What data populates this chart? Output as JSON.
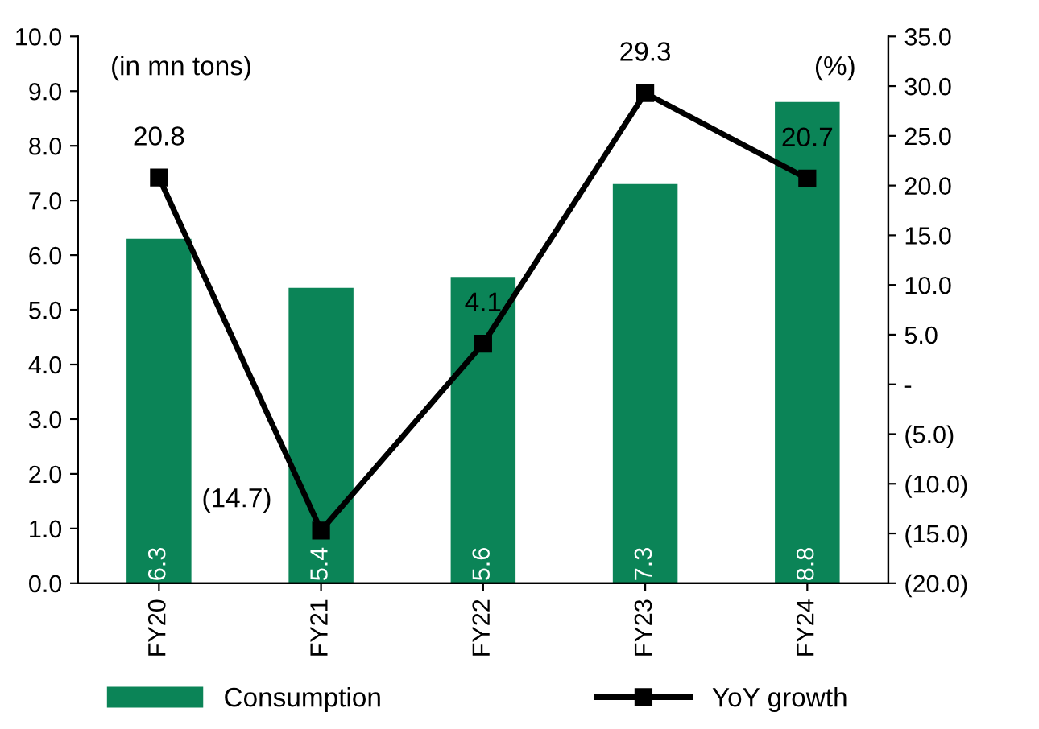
{
  "chart_data": {
    "type": "bar",
    "categories": [
      "FY20",
      "FY21",
      "FY22",
      "FY23",
      "FY24"
    ],
    "ylabel": "(in mn tons)",
    "y2label": "(%)",
    "series": [
      {
        "name": "Consumption",
        "color": "#0b8457",
        "values": [
          6.3,
          5.4,
          5.6,
          7.3,
          8.8
        ],
        "value_labels": [
          "6.3",
          "5.4",
          "5.6",
          "7.3",
          "8.8"
        ]
      },
      {
        "name": "YoY growth",
        "type": "line",
        "axis": "y2",
        "color": "#000000",
        "marker": "square",
        "values": [
          20.8,
          -14.7,
          4.1,
          29.3,
          20.7
        ],
        "value_labels": [
          "20.8",
          "(14.7)",
          "4.1",
          "29.3",
          "20.7"
        ]
      }
    ],
    "ylim": [
      0,
      10
    ],
    "yticks": [
      {
        "value": 0,
        "label": "0.0"
      },
      {
        "value": 1,
        "label": "1.0"
      },
      {
        "value": 2,
        "label": "2.0"
      },
      {
        "value": 3,
        "label": "3.0"
      },
      {
        "value": 4,
        "label": "4.0"
      },
      {
        "value": 5,
        "label": "5.0"
      },
      {
        "value": 6,
        "label": "6.0"
      },
      {
        "value": 7,
        "label": "7.0"
      },
      {
        "value": 8,
        "label": "8.0"
      },
      {
        "value": 9,
        "label": "9.0"
      },
      {
        "value": 10,
        "label": "10.0"
      }
    ],
    "y2lim": [
      -20,
      35
    ],
    "y2ticks": [
      {
        "value": -20,
        "label": "(20.0)"
      },
      {
        "value": -15,
        "label": "(15.0)"
      },
      {
        "value": -10,
        "label": "(10.0)"
      },
      {
        "value": -5,
        "label": "(5.0)"
      },
      {
        "value": 0,
        "label": "-"
      },
      {
        "value": 5,
        "label": "5.0"
      },
      {
        "value": 10,
        "label": "10.0"
      },
      {
        "value": 15,
        "label": "15.0"
      },
      {
        "value": 20,
        "label": "20.0"
      },
      {
        "value": 25,
        "label": "25.0"
      },
      {
        "value": 30,
        "label": "30.0"
      },
      {
        "value": 35,
        "label": "35.0"
      }
    ],
    "grid": false,
    "legend": "bottom"
  }
}
